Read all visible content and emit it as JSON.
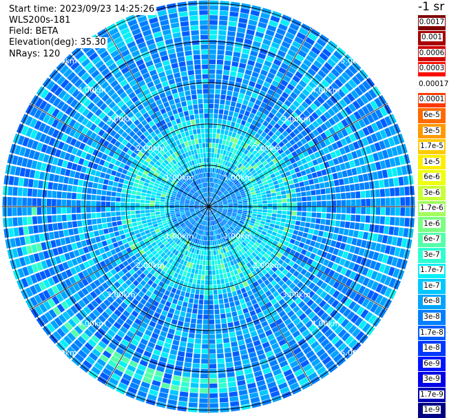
{
  "header": {
    "start_time": "Start time: 2023/09/23 14:25:26",
    "instrument": "WLS200s-181",
    "field": "Field: BETA",
    "elevation": "Elevation(deg): 35.30",
    "nrays": "NRays: 120"
  },
  "colorbar": {
    "unit": "-1 sr",
    "levels": [
      {
        "label": "0.0017",
        "color": "#7f0000"
      },
      {
        "label": "0.001",
        "color": "#a80000"
      },
      {
        "label": "0.0006",
        "color": "#d10000"
      },
      {
        "label": "0.0003",
        "color": "#fa0f00"
      },
      {
        "label": "0.00017",
        "color": "#ffffff"
      },
      {
        "label": "0.0001",
        "color": "#ff3a00"
      },
      {
        "label": "6e-5",
        "color": "#ff6a00"
      },
      {
        "label": "3e-5",
        "color": "#ff9a00"
      },
      {
        "label": "1.7e-5",
        "color": "#ffcb00"
      },
      {
        "label": "1e-5",
        "color": "#ffee00"
      },
      {
        "label": "6e-6",
        "color": "#eeff10"
      },
      {
        "label": "3e-6",
        "color": "#c8ff37"
      },
      {
        "label": "1.7e-6",
        "color": "#a2ff5e"
      },
      {
        "label": "1e-6",
        "color": "#7bff84"
      },
      {
        "label": "6e-7",
        "color": "#55ffaa"
      },
      {
        "label": "3e-7",
        "color": "#2fffd0"
      },
      {
        "label": "1.7e-7",
        "color": "#08eff7"
      },
      {
        "label": "1e-7",
        "color": "#00c8ff"
      },
      {
        "label": "6e-8",
        "color": "#00a4ff"
      },
      {
        "label": "3e-8",
        "color": "#0080ff"
      },
      {
        "label": "1.7e-8",
        "color": "#005cff"
      },
      {
        "label": "1e-8",
        "color": "#0038ff"
      },
      {
        "label": "6e-9",
        "color": "#0014ff"
      },
      {
        "label": "3e-9",
        "color": "#0000e8"
      },
      {
        "label": "1.7e-9",
        "color": "#0000b6"
      },
      {
        "label": "1e-9",
        "color": "#000084"
      }
    ]
  },
  "chart_data": {
    "type": "heatmap",
    "projection": "polar",
    "rays": 120,
    "range_max_km": 5.0,
    "range_rings_km": [
      1.0,
      2.0,
      3.0,
      4.0,
      5.0
    ],
    "range_labels": [
      "1.00km",
      "2.00km",
      "3.00km",
      "4.00km",
      "5.00km"
    ],
    "azimuth_spokes_deg": [
      0,
      30,
      60,
      90,
      120,
      150,
      180,
      210,
      240,
      270,
      300,
      330
    ],
    "dominant_values": [
      "6e-8",
      "3e-8",
      "1.7e-8",
      "1.7e-7",
      "3e-7"
    ],
    "ring_feature_range_km": 4.3
  }
}
